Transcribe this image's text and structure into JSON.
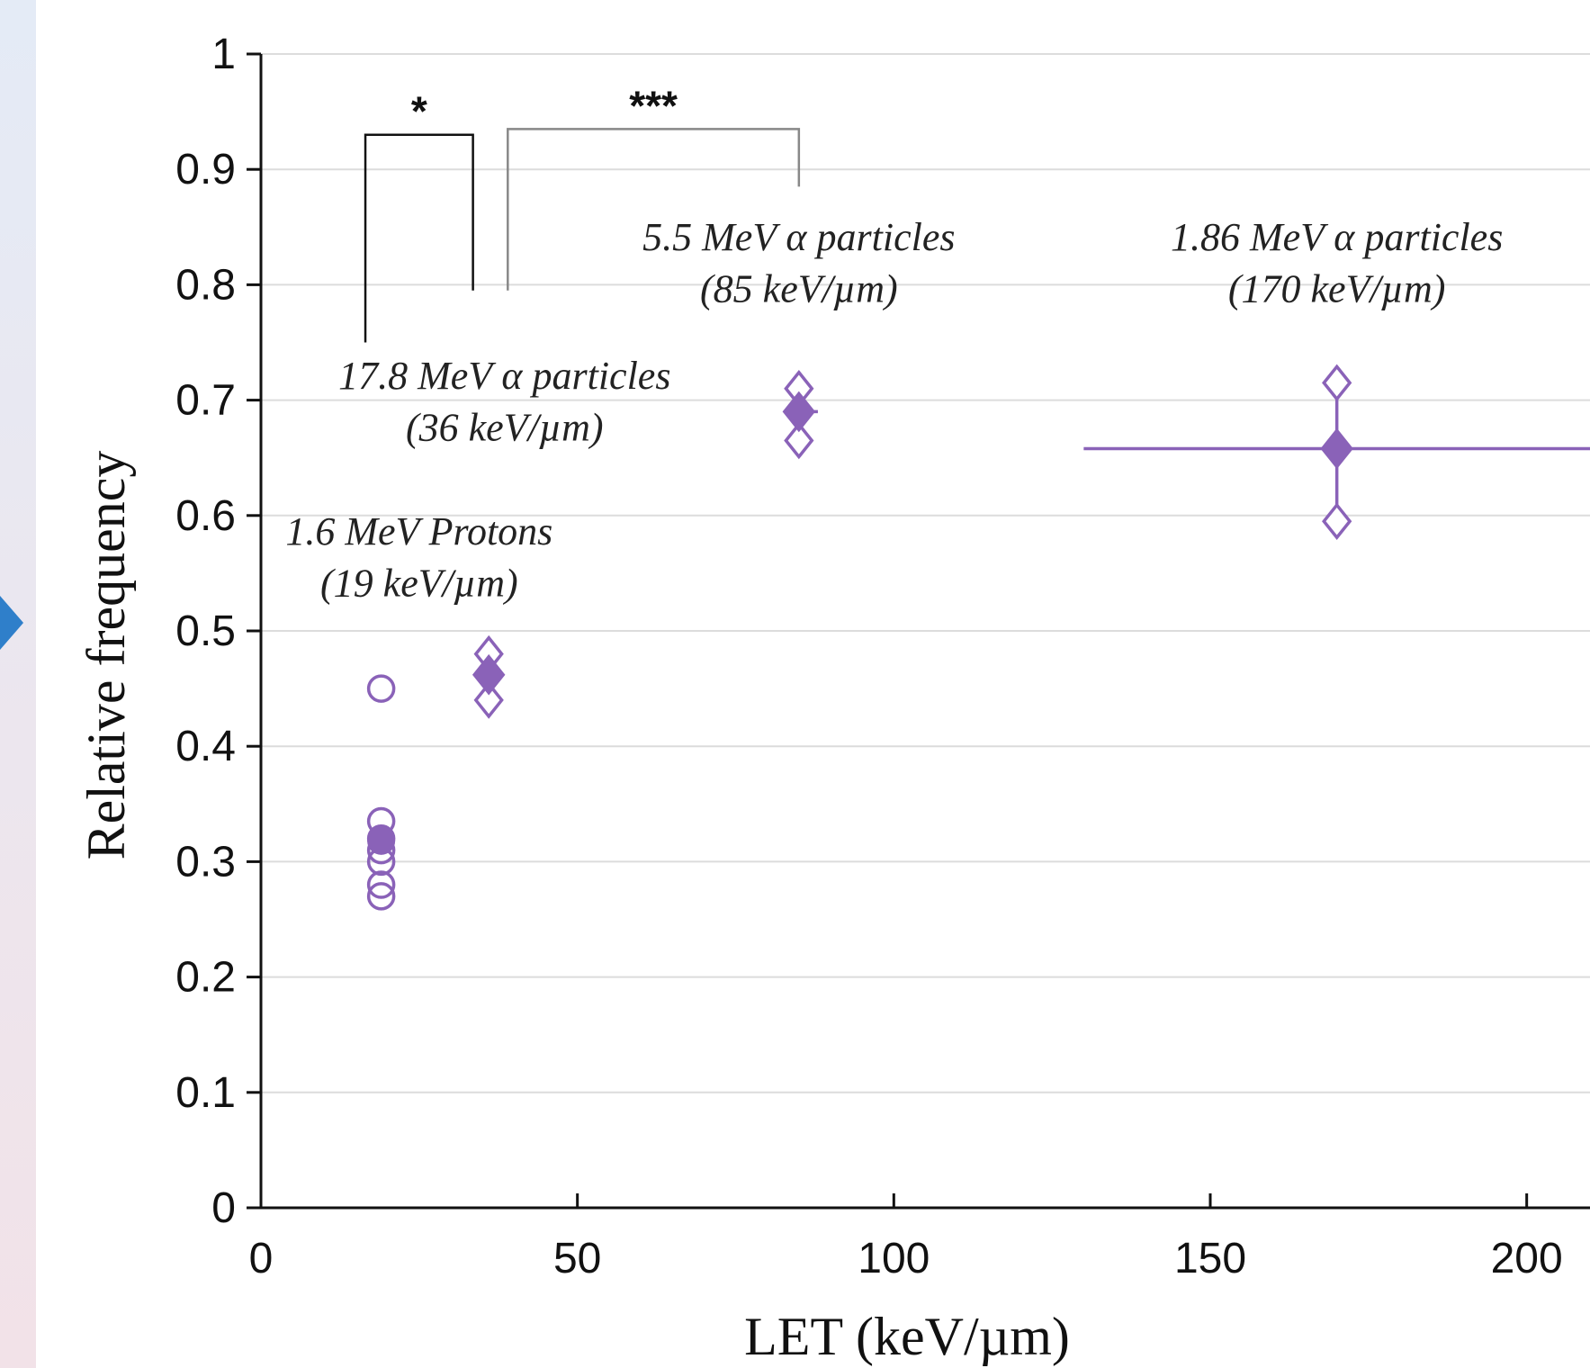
{
  "chart_data": {
    "type": "scatter",
    "title": "",
    "xlabel": "LET (keV/µm)",
    "ylabel": "Relative frequency",
    "xlim": [
      0,
      210
    ],
    "ylim": [
      0,
      1
    ],
    "x_ticks": [
      "0",
      "50",
      "100",
      "150",
      "200"
    ],
    "y_ticks": [
      "0",
      "0.1",
      "0.2",
      "0.3",
      "0.4",
      "0.5",
      "0.6",
      "0.7",
      "0.8",
      "0.9",
      "1"
    ],
    "grid": true,
    "color": "#8a62b8",
    "groups": [
      {
        "label_line1": "1.6 MeV Protons",
        "label_line2": "(19 keV/µm)",
        "let": 19,
        "marker": "circle",
        "individual": [
          0.45,
          0.335,
          0.32,
          0.31,
          0.3,
          0.28,
          0.27
        ],
        "mean": 0.318
      },
      {
        "label_line1": "17.8 MeV α particles",
        "label_line2": "(36 keV/µm)",
        "let": 36,
        "marker": "diamond",
        "individual": [
          0.48,
          0.44
        ],
        "mean": 0.462
      },
      {
        "label_line1": "5.5 MeV α particles",
        "label_line2": "(85 keV/µm)",
        "let": 85,
        "marker": "diamond",
        "individual": [
          0.71,
          0.665
        ],
        "mean": 0.69,
        "x_err": [
          83,
          88
        ]
      },
      {
        "label_line1": "1.86 MeV α particles",
        "label_line2": "(170 keV/µm)",
        "let": 170,
        "marker": "diamond",
        "individual": [
          0.715,
          0.595
        ],
        "mean": 0.658,
        "x_err": [
          130,
          210
        ],
        "y_err": [
          0.595,
          0.715
        ]
      }
    ],
    "significance": [
      {
        "label": "*",
        "from_let": 19,
        "to_let": 36
      },
      {
        "label": "***",
        "from_let": 36,
        "to_let": 85
      }
    ]
  }
}
